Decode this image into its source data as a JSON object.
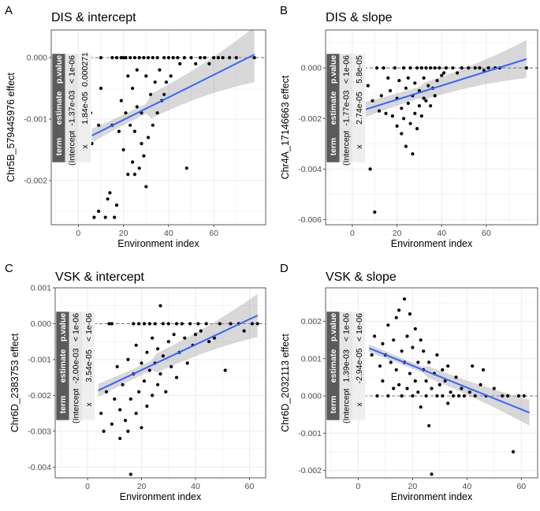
{
  "figure": {
    "colors": {
      "point": "#000000",
      "fit_line": "#3366ff",
      "ribbon": "#999999",
      "panel_bg": "#ffffff",
      "grid": "#ebebeb",
      "table_head": "#5b5b5b",
      "table_cell": "#e6e6e6"
    }
  },
  "chart_data": [
    {
      "letter": "A",
      "type": "scatter",
      "title": "DIS & intercept",
      "xlabel": "Environment index",
      "ylabel": "Chr5B_579445976 effect",
      "xlim": [
        -12,
        83
      ],
      "ylim": [
        -0.00272,
        0.00045
      ],
      "xticks": [
        0,
        20,
        40,
        60
      ],
      "xtick_labels": [
        "0",
        "20",
        "40",
        "60"
      ],
      "yticks": [
        0,
        -0.001,
        -0.002
      ],
      "ytick_labels": [
        "0.000",
        "-0.001",
        "-0.002"
      ],
      "fit": {
        "x": [
          6,
          78
        ],
        "y": [
          -0.00127,
          5e-05
        ],
        "se": [
          0.00018,
          0.00045
        ]
      },
      "table": {
        "headers": [
          "term",
          "estimate",
          "p.value"
        ],
        "rows": [
          [
            "(Intercept)",
            "-1.37e-03",
            "< 1e-06"
          ],
          [
            "x",
            "1.84e-05",
            "0.000271"
          ]
        ]
      },
      "points": [
        [
          5.5,
          -0.0009
        ],
        [
          6,
          -0.0014
        ],
        [
          7,
          -0.0026
        ],
        [
          9,
          -0.0025
        ],
        [
          9,
          -0.0011
        ],
        [
          10,
          0
        ],
        [
          10,
          -0.0005
        ],
        [
          12,
          -0.0026
        ],
        [
          13,
          -0.0023
        ],
        [
          14,
          -0.0022
        ],
        [
          15,
          0
        ],
        [
          15,
          -0.0011
        ],
        [
          16,
          -0.0026
        ],
        [
          17,
          -0.0024
        ],
        [
          17,
          0
        ],
        [
          18,
          -0.0012
        ],
        [
          19,
          0
        ],
        [
          19,
          -0.0007
        ],
        [
          20,
          0
        ],
        [
          20,
          -0.0015
        ],
        [
          21,
          0
        ],
        [
          21,
          -0.0009
        ],
        [
          22,
          -0.0019
        ],
        [
          22,
          -0.0003
        ],
        [
          23,
          0
        ],
        [
          23,
          -0.0011
        ],
        [
          24,
          -0.0017
        ],
        [
          24,
          -0.0005
        ],
        [
          25,
          0
        ],
        [
          25,
          -0.0019
        ],
        [
          25,
          -0.0012
        ],
        [
          26,
          -0.0002
        ],
        [
          26,
          -0.0008
        ],
        [
          27,
          0
        ],
        [
          27,
          -0.0018
        ],
        [
          28,
          -0.0014
        ],
        [
          28,
          -0.0009
        ],
        [
          29,
          0
        ],
        [
          29,
          -0.0016
        ],
        [
          30,
          -0.0003
        ],
        [
          30,
          -0.0021
        ],
        [
          31,
          0
        ],
        [
          31,
          -0.0013
        ],
        [
          32,
          -0.0006
        ],
        [
          33,
          0
        ],
        [
          33,
          -0.0011
        ],
        [
          34,
          -0.0004
        ],
        [
          35,
          0
        ],
        [
          35,
          -0.0009
        ],
        [
          36,
          -0.0002
        ],
        [
          37,
          -0.0007
        ],
        [
          38,
          0
        ],
        [
          38,
          -0.0006
        ],
        [
          39,
          -0.0004
        ],
        [
          40,
          0
        ],
        [
          41,
          -0.0003
        ],
        [
          42,
          0
        ],
        [
          44,
          0
        ],
        [
          45,
          -0.0001
        ],
        [
          47,
          0
        ],
        [
          48,
          -0.0018
        ],
        [
          50,
          0
        ],
        [
          52,
          -0.0001
        ],
        [
          54,
          0
        ],
        [
          56,
          0
        ],
        [
          58,
          -0.0001
        ],
        [
          60,
          0
        ],
        [
          62,
          0
        ],
        [
          64,
          0
        ],
        [
          67,
          0
        ],
        [
          70,
          0
        ],
        [
          78,
          0
        ]
      ]
    },
    {
      "letter": "B",
      "type": "scatter",
      "title": "DIS & slope",
      "xlabel": "Environment index",
      "ylabel": "Chr4A_17146663 effect",
      "xlim": [
        -12,
        83
      ],
      "ylim": [
        -0.0062,
        0.0015
      ],
      "xticks": [
        0,
        20,
        40,
        60
      ],
      "xtick_labels": [
        "0",
        "20",
        "40",
        "60"
      ],
      "yticks": [
        0,
        -0.002,
        -0.004,
        -0.006
      ],
      "ytick_labels": [
        "0.000",
        "-0.002",
        "-0.004",
        "-0.006"
      ],
      "fit": {
        "x": [
          6,
          78
        ],
        "y": [
          -0.00164,
          0.00035
        ],
        "se": [
          0.0005,
          0.00075
        ]
      },
      "table": {
        "headers": [
          "term",
          "estimate",
          "p.value"
        ],
        "rows": [
          [
            "(Intercept)",
            "-1.77e-03",
            "< 1e-06"
          ],
          [
            "x",
            "2.74e-05",
            "5.8e-05"
          ]
        ]
      },
      "points": [
        [
          7,
          -0.0007
        ],
        [
          8,
          -0.004
        ],
        [
          9,
          -0.0013
        ],
        [
          10,
          -0.0057
        ],
        [
          11,
          0
        ],
        [
          12,
          -0.0017
        ],
        [
          13,
          -0.0011
        ],
        [
          14,
          0
        ],
        [
          15,
          -0.0018
        ],
        [
          16,
          -0.0004
        ],
        [
          17,
          -0.0009
        ],
        [
          18,
          -0.0019
        ],
        [
          19,
          0
        ],
        [
          20,
          -0.0023
        ],
        [
          20,
          -0.0012
        ],
        [
          21,
          -0.0005
        ],
        [
          22,
          -0.0026
        ],
        [
          22,
          -0.0016
        ],
        [
          23,
          0
        ],
        [
          23,
          -0.002
        ],
        [
          24,
          -0.0008
        ],
        [
          24,
          -0.0031
        ],
        [
          25,
          -0.0014
        ],
        [
          25,
          -0.0004
        ],
        [
          26,
          0
        ],
        [
          26,
          -0.0022
        ],
        [
          27,
          -0.0034
        ],
        [
          27,
          -0.0011
        ],
        [
          28,
          -0.0018
        ],
        [
          28,
          -0.0006
        ],
        [
          29,
          0
        ],
        [
          29,
          -0.0024
        ],
        [
          30,
          -0.0009
        ],
        [
          30,
          -0.0015
        ],
        [
          31,
          0
        ],
        [
          31,
          -0.0019
        ],
        [
          32,
          -0.0012
        ],
        [
          32,
          -0.0004
        ],
        [
          33,
          0
        ],
        [
          33,
          -0.0013
        ],
        [
          34,
          -0.0007
        ],
        [
          35,
          -0.0015
        ],
        [
          35,
          0
        ],
        [
          36,
          -0.0008
        ],
        [
          37,
          -0.0011
        ],
        [
          37,
          0
        ],
        [
          38,
          -0.0005
        ],
        [
          39,
          0
        ],
        [
          40,
          -0.0003
        ],
        [
          41,
          -0.0002
        ],
        [
          42,
          0
        ],
        [
          45,
          0
        ],
        [
          47,
          -0.0002
        ],
        [
          49,
          0
        ],
        [
          52,
          0
        ],
        [
          55,
          0
        ],
        [
          57,
          0
        ],
        [
          59,
          -0.0001
        ],
        [
          61,
          0
        ],
        [
          64,
          0
        ],
        [
          66,
          0
        ],
        [
          78,
          0
        ]
      ]
    },
    {
      "letter": "C",
      "type": "scatter",
      "title": "VSK & intercept",
      "xlabel": "Environment index",
      "ylabel": "Chr6D_2383753 effect",
      "xlim": [
        -12,
        66
      ],
      "ylim": [
        -0.0043,
        0.001
      ],
      "xticks": [
        0,
        20,
        40,
        60
      ],
      "xtick_labels": [
        "0",
        "20",
        "40",
        "60"
      ],
      "yticks": [
        0.001,
        0,
        -0.001,
        -0.002,
        -0.003,
        -0.004
      ],
      "ytick_labels": [
        "0.001",
        "0.000",
        "-0.001",
        "-0.002",
        "-0.003",
        "-0.004"
      ],
      "fit": {
        "x": [
          4,
          63
        ],
        "y": [
          -0.00186,
          0.00023
        ],
        "se": [
          0.0003,
          0.0006
        ]
      },
      "table": {
        "headers": [
          "term",
          "estimate",
          "p.value"
        ],
        "rows": [
          [
            "(Intercept)",
            "-2.00e-03",
            "< 1e-06"
          ],
          [
            "x",
            "3.54e-05",
            "< 1e-06"
          ]
        ]
      },
      "points": [
        [
          5,
          -0.0025
        ],
        [
          6,
          -0.003
        ],
        [
          7,
          -0.0019
        ],
        [
          8,
          0
        ],
        [
          9,
          0
        ],
        [
          9,
          -0.0028
        ],
        [
          10,
          -0.0021
        ],
        [
          11,
          -0.0012
        ],
        [
          12,
          -0.0024
        ],
        [
          12,
          -0.0032
        ],
        [
          13,
          -0.0017
        ],
        [
          14,
          -0.0027
        ],
        [
          15,
          -0.001
        ],
        [
          15,
          -0.003
        ],
        [
          16,
          -0.0021
        ],
        [
          16,
          -0.0042
        ],
        [
          17,
          0
        ],
        [
          17,
          -0.0014
        ],
        [
          18,
          -0.0025
        ],
        [
          18,
          -0.0006
        ],
        [
          19,
          0
        ],
        [
          19,
          -0.0019
        ],
        [
          20,
          -0.0011
        ],
        [
          20,
          -0.0029
        ],
        [
          21,
          0
        ],
        [
          21,
          -0.0016
        ],
        [
          22,
          -0.0008
        ],
        [
          22,
          -0.0023
        ],
        [
          23,
          0
        ],
        [
          23,
          -0.0013
        ],
        [
          24,
          -0.002
        ],
        [
          24,
          -0.0004
        ],
        [
          25,
          0
        ],
        [
          25,
          -0.0011
        ],
        [
          26,
          -0.0017
        ],
        [
          26,
          -0.0007
        ],
        [
          27,
          0.0005
        ],
        [
          27,
          -0.0014
        ],
        [
          28,
          0
        ],
        [
          28,
          -0.0009
        ],
        [
          29,
          -0.0019
        ],
        [
          30,
          -0.0005
        ],
        [
          30,
          0
        ],
        [
          31,
          -0.0012
        ],
        [
          32,
          -0.0003
        ],
        [
          33,
          0
        ],
        [
          33,
          -0.0015
        ],
        [
          34,
          -0.0008
        ],
        [
          35,
          0
        ],
        [
          36,
          -0.0004
        ],
        [
          37,
          -0.0011
        ],
        [
          38,
          0
        ],
        [
          39,
          -0.0006
        ],
        [
          40,
          -0.0003
        ],
        [
          41,
          0
        ],
        [
          42,
          -0.0002
        ],
        [
          44,
          0
        ],
        [
          45,
          -0.0005
        ],
        [
          47,
          -0.0004
        ],
        [
          49,
          0
        ],
        [
          51,
          -0.0013
        ],
        [
          53,
          0
        ],
        [
          56,
          0
        ],
        [
          58,
          -0.0002
        ],
        [
          61,
          0
        ],
        [
          63,
          0
        ]
      ]
    },
    {
      "letter": "D",
      "type": "scatter",
      "title": "VSK & slope",
      "xlabel": "Environment index",
      "ylabel": "Chr6D_2032113 effect",
      "xlim": [
        -12,
        66
      ],
      "ylim": [
        -0.0022,
        0.0029
      ],
      "xticks": [
        0,
        20,
        40,
        60
      ],
      "xtick_labels": [
        "0",
        "20",
        "40",
        "60"
      ],
      "yticks": [
        0.002,
        0.001,
        0,
        -0.001,
        -0.002
      ],
      "ytick_labels": [
        "0.002",
        "0.001",
        "0.000",
        "-0.001",
        "-0.002"
      ],
      "fit": {
        "x": [
          4,
          63
        ],
        "y": [
          0.00128,
          -0.00045
        ],
        "se": [
          0.00018,
          0.00035
        ]
      },
      "table": {
        "headers": [
          "term",
          "estimate",
          "p.value"
        ],
        "rows": [
          [
            "(Intercept)",
            "1.39e-03",
            "< 1e-06"
          ],
          [
            "x",
            "-2.94e-05",
            "< 1e-06"
          ]
        ]
      },
      "points": [
        [
          5,
          0.0011
        ],
        [
          6,
          0.0016
        ],
        [
          7,
          0
        ],
        [
          8,
          0.0008
        ],
        [
          9,
          0.0014
        ],
        [
          9,
          0.0004
        ],
        [
          10,
          0.0011
        ],
        [
          11,
          0.0019
        ],
        [
          11,
          0
        ],
        [
          12,
          0.0009
        ],
        [
          13,
          0.0015
        ],
        [
          13,
          0.0002
        ],
        [
          14,
          0.0021
        ],
        [
          14,
          0.0007
        ],
        [
          15,
          0.0023
        ],
        [
          15,
          0.0003
        ],
        [
          16,
          0.0012
        ],
        [
          16,
          0
        ],
        [
          17,
          0.0026
        ],
        [
          17,
          0.0009
        ],
        [
          18,
          0.0016
        ],
        [
          18,
          0.0002
        ],
        [
          19,
          0.0022
        ],
        [
          19,
          0.0006
        ],
        [
          20,
          0.0013
        ],
        [
          20,
          0
        ],
        [
          21,
          0.0018
        ],
        [
          21,
          0.0004
        ],
        [
          22,
          0.0009
        ],
        [
          22,
          0.0001
        ],
        [
          23,
          0.0015
        ],
        [
          23,
          -0.0003
        ],
        [
          24,
          0.0007
        ],
        [
          24,
          0.0012
        ],
        [
          25,
          0
        ],
        [
          25,
          0.0004
        ],
        [
          26,
          0.0009
        ],
        [
          26,
          -0.0008
        ],
        [
          27,
          -0.0021
        ],
        [
          27,
          0.0002
        ],
        [
          28,
          0.0006
        ],
        [
          29,
          0
        ],
        [
          29,
          0.0011
        ],
        [
          30,
          0.0003
        ],
        [
          31,
          0.0007
        ],
        [
          31,
          0
        ],
        [
          32,
          0.0004
        ],
        [
          33,
          -0.0002
        ],
        [
          33,
          0.0008
        ],
        [
          34,
          0.0001
        ],
        [
          35,
          0
        ],
        [
          36,
          0.0005
        ],
        [
          37,
          0
        ],
        [
          38,
          0.0002
        ],
        [
          39,
          0
        ],
        [
          41,
          0.0001
        ],
        [
          42,
          0.0008
        ],
        [
          43,
          0
        ],
        [
          45,
          0.0003
        ],
        [
          46,
          0.0007
        ],
        [
          47,
          0
        ],
        [
          50,
          0.0002
        ],
        [
          53,
          0
        ],
        [
          55,
          0
        ],
        [
          57,
          -0.0015
        ],
        [
          59,
          0
        ],
        [
          61,
          0
        ]
      ]
    }
  ]
}
